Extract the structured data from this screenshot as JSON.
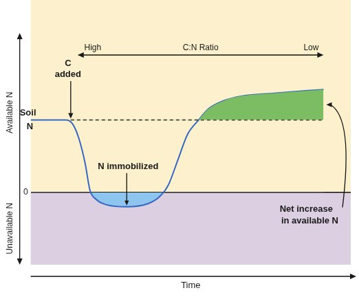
{
  "chart_data": {
    "type": "line",
    "x_label": "Time",
    "y_labels": {
      "upper": "Available N",
      "lower": "Unavailable N"
    },
    "xlim": [
      0,
      100
    ],
    "ylim": [
      -100,
      220
    ],
    "yticks": [
      0
    ],
    "tick_labels": "y",
    "grid": true,
    "series": [
      {
        "name": "Soil N",
        "color": "#3568c4",
        "x": [
          0,
          11,
          13,
          15,
          17,
          18.5,
          20.5,
          23.5,
          30,
          36.5,
          40.5,
          43,
          46,
          49,
          52.5,
          55.5,
          60,
          66,
          76.5,
          91.5
        ],
        "values": [
          100,
          100,
          95,
          75,
          40,
          3,
          -10,
          -17,
          -20,
          -16,
          -5,
          10,
          45,
          80,
          100,
          115,
          126,
          133,
          137,
          142
        ]
      }
    ],
    "baseline": {
      "value": 100,
      "x": [
        12.5,
        91.5
      ],
      "line_style": "dashed"
    },
    "annotations": {
      "c_added": [
        "C",
        "added"
      ],
      "n_immobilized": "N immobilized",
      "net_increase": [
        "Net increase",
        "in available N"
      ],
      "ratio_label": "C:N Ratio",
      "ratio_high": "High",
      "ratio_low": "Low"
    }
  }
}
